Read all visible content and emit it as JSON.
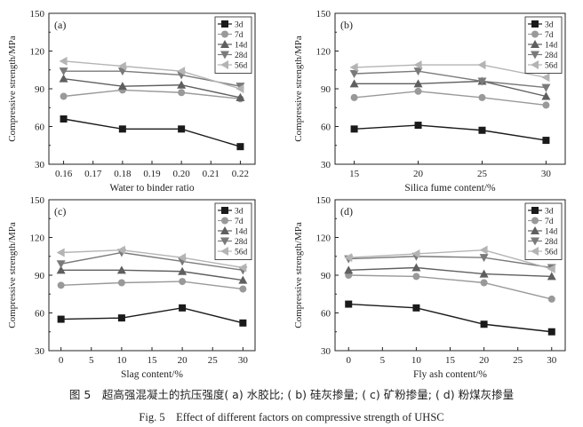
{
  "caption": {
    "cn": "图 5　超高强混凝土的抗压强度( a) 水胶比; ( b) 硅灰掺量; ( c) 矿粉掺量; ( d) 粉煤灰掺量",
    "en": "Fig. 5　Effect of different factors on compressive strength of UHSC"
  },
  "colors": {
    "3d": "#1a1a1a",
    "7d": "#999999",
    "14d": "#5f5f5f",
    "28d": "#7a7a7a",
    "56d": "#b4b4b4"
  },
  "markers": {
    "3d": "square",
    "7d": "circle",
    "14d": "triangle-up",
    "28d": "triangle-down",
    "56d": "triangle-left"
  },
  "chart_data": [
    {
      "type": "line",
      "panel": "(a)",
      "xlabel": "Water to binder ratio",
      "ylabel": "Compressive strength/MPa",
      "x": [
        0.16,
        0.18,
        0.2,
        0.22
      ],
      "xlim": [
        0.155,
        0.225
      ],
      "xticks": [
        0.16,
        0.17,
        0.18,
        0.19,
        0.2,
        0.21,
        0.22
      ],
      "xtick_labels": [
        "0.16",
        "0.17",
        "0.18",
        "0.19",
        "0.20",
        "0.21",
        "0.22"
      ],
      "ylim": [
        30,
        150
      ],
      "yticks": [
        30,
        60,
        90,
        120,
        150
      ],
      "legend": "top-right",
      "grid": false,
      "series": [
        {
          "name": "3d",
          "values": [
            66,
            58,
            58,
            44
          ]
        },
        {
          "name": "7d",
          "values": [
            84,
            89,
            87,
            82
          ]
        },
        {
          "name": "14d",
          "values": [
            98,
            92,
            93,
            83
          ]
        },
        {
          "name": "28d",
          "values": [
            104,
            104,
            101,
            92
          ]
        },
        {
          "name": "56d",
          "values": [
            112,
            108,
            104,
            90
          ]
        }
      ]
    },
    {
      "type": "line",
      "panel": "(b)",
      "xlabel": "Silica fume content/%",
      "ylabel": "Compressive strength/MPa",
      "x": [
        15,
        20,
        25,
        30
      ],
      "xlim": [
        13.5,
        31.5
      ],
      "xticks": [
        15,
        20,
        25,
        30
      ],
      "xtick_labels": [
        "15",
        "20",
        "25",
        "30"
      ],
      "ylim": [
        30,
        150
      ],
      "yticks": [
        30,
        60,
        90,
        120,
        150
      ],
      "legend": "top-right",
      "grid": false,
      "series": [
        {
          "name": "3d",
          "values": [
            58,
            61,
            57,
            49
          ]
        },
        {
          "name": "7d",
          "values": [
            83,
            88,
            83,
            77
          ]
        },
        {
          "name": "14d",
          "values": [
            94,
            94,
            96,
            84
          ]
        },
        {
          "name": "28d",
          "values": [
            102,
            104,
            96,
            91
          ]
        },
        {
          "name": "56d",
          "values": [
            107,
            109,
            109,
            99
          ]
        }
      ]
    },
    {
      "type": "line",
      "panel": "(c)",
      "xlabel": "Slag content/%",
      "ylabel": "Compressive strength/MPa",
      "x": [
        0,
        10,
        20,
        30
      ],
      "xlim": [
        -2,
        32
      ],
      "xticks": [
        0,
        5,
        10,
        15,
        20,
        25,
        30
      ],
      "xtick_labels": [
        "0",
        "5",
        "10",
        "15",
        "20",
        "25",
        "30"
      ],
      "ylim": [
        30,
        150
      ],
      "yticks": [
        30,
        60,
        90,
        120,
        150
      ],
      "legend": "top-right",
      "grid": false,
      "series": [
        {
          "name": "3d",
          "values": [
            55,
            56,
            64,
            52
          ]
        },
        {
          "name": "7d",
          "values": [
            82,
            84,
            85,
            79
          ]
        },
        {
          "name": "14d",
          "values": [
            94,
            94,
            93,
            86
          ]
        },
        {
          "name": "28d",
          "values": [
            99,
            108,
            101,
            94
          ]
        },
        {
          "name": "56d",
          "values": [
            108,
            110,
            104,
            96
          ]
        }
      ]
    },
    {
      "type": "line",
      "panel": "(d)",
      "xlabel": "Fly ash content/%",
      "ylabel": "Compressive strength/MPa",
      "x": [
        0,
        10,
        20,
        30
      ],
      "xlim": [
        -2,
        32
      ],
      "xticks": [
        0,
        5,
        10,
        15,
        20,
        25,
        30
      ],
      "xtick_labels": [
        "0",
        "5",
        "10",
        "15",
        "20",
        "25",
        "30"
      ],
      "ylim": [
        30,
        150
      ],
      "yticks": [
        30,
        60,
        90,
        120,
        150
      ],
      "legend": "top-right",
      "grid": false,
      "series": [
        {
          "name": "3d",
          "values": [
            67,
            64,
            51,
            45
          ]
        },
        {
          "name": "7d",
          "values": [
            90,
            89,
            84,
            71
          ]
        },
        {
          "name": "14d",
          "values": [
            94,
            96,
            91,
            89
          ]
        },
        {
          "name": "28d",
          "values": [
            103,
            105,
            104,
            96
          ]
        },
        {
          "name": "56d",
          "values": [
            104,
            107,
            110,
            95
          ]
        }
      ]
    }
  ]
}
